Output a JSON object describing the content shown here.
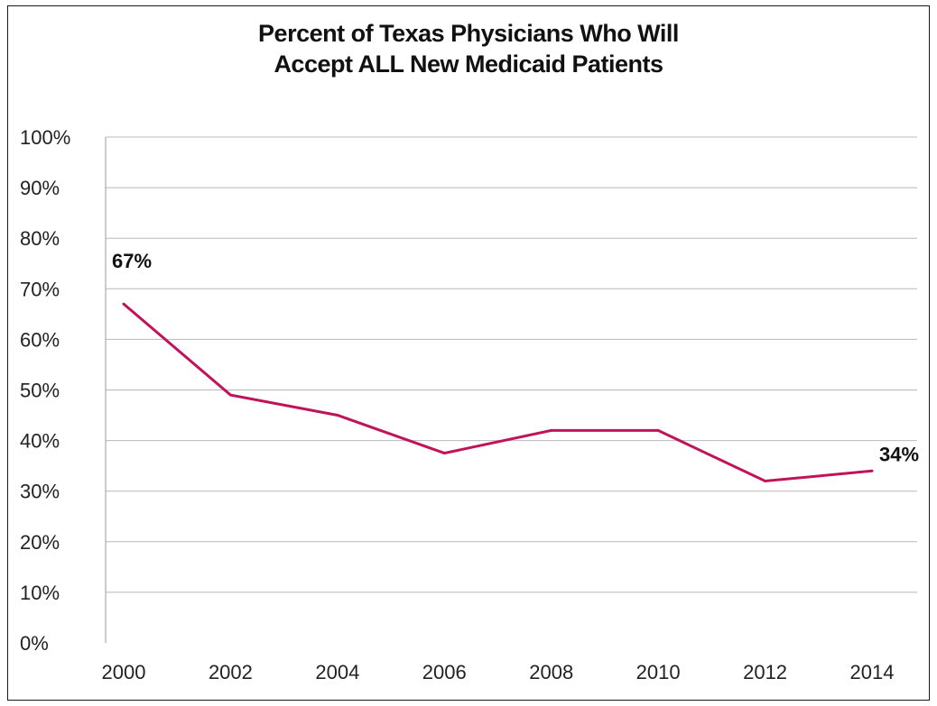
{
  "chart_data": {
    "type": "line",
    "title": [
      "Percent of Texas Physicians Who Will",
      "Accept ALL New Medicaid Patients"
    ],
    "x": [
      2000,
      2002,
      2004,
      2006,
      2008,
      2010,
      2012,
      2014
    ],
    "x_tick_labels": [
      "2000",
      "2002",
      "2004",
      "2006",
      "2008",
      "2010",
      "2012",
      "2014"
    ],
    "y_tick_labels": [
      "0%",
      "10%",
      "20%",
      "30%",
      "40%",
      "50%",
      "60%",
      "70%",
      "80%",
      "90%",
      "100%"
    ],
    "series": [
      {
        "values": [
          67,
          49,
          45,
          37.5,
          42,
          42,
          32,
          34
        ]
      }
    ],
    "data_labels": [
      {
        "index": 0,
        "text": "67%"
      },
      {
        "index": 7,
        "text": "34%"
      }
    ],
    "ylim": [
      0,
      100
    ],
    "grid": true,
    "colors": {
      "line": "#c0135a",
      "grid": "#b8b8b8",
      "axis": "#9a9a9a"
    }
  }
}
